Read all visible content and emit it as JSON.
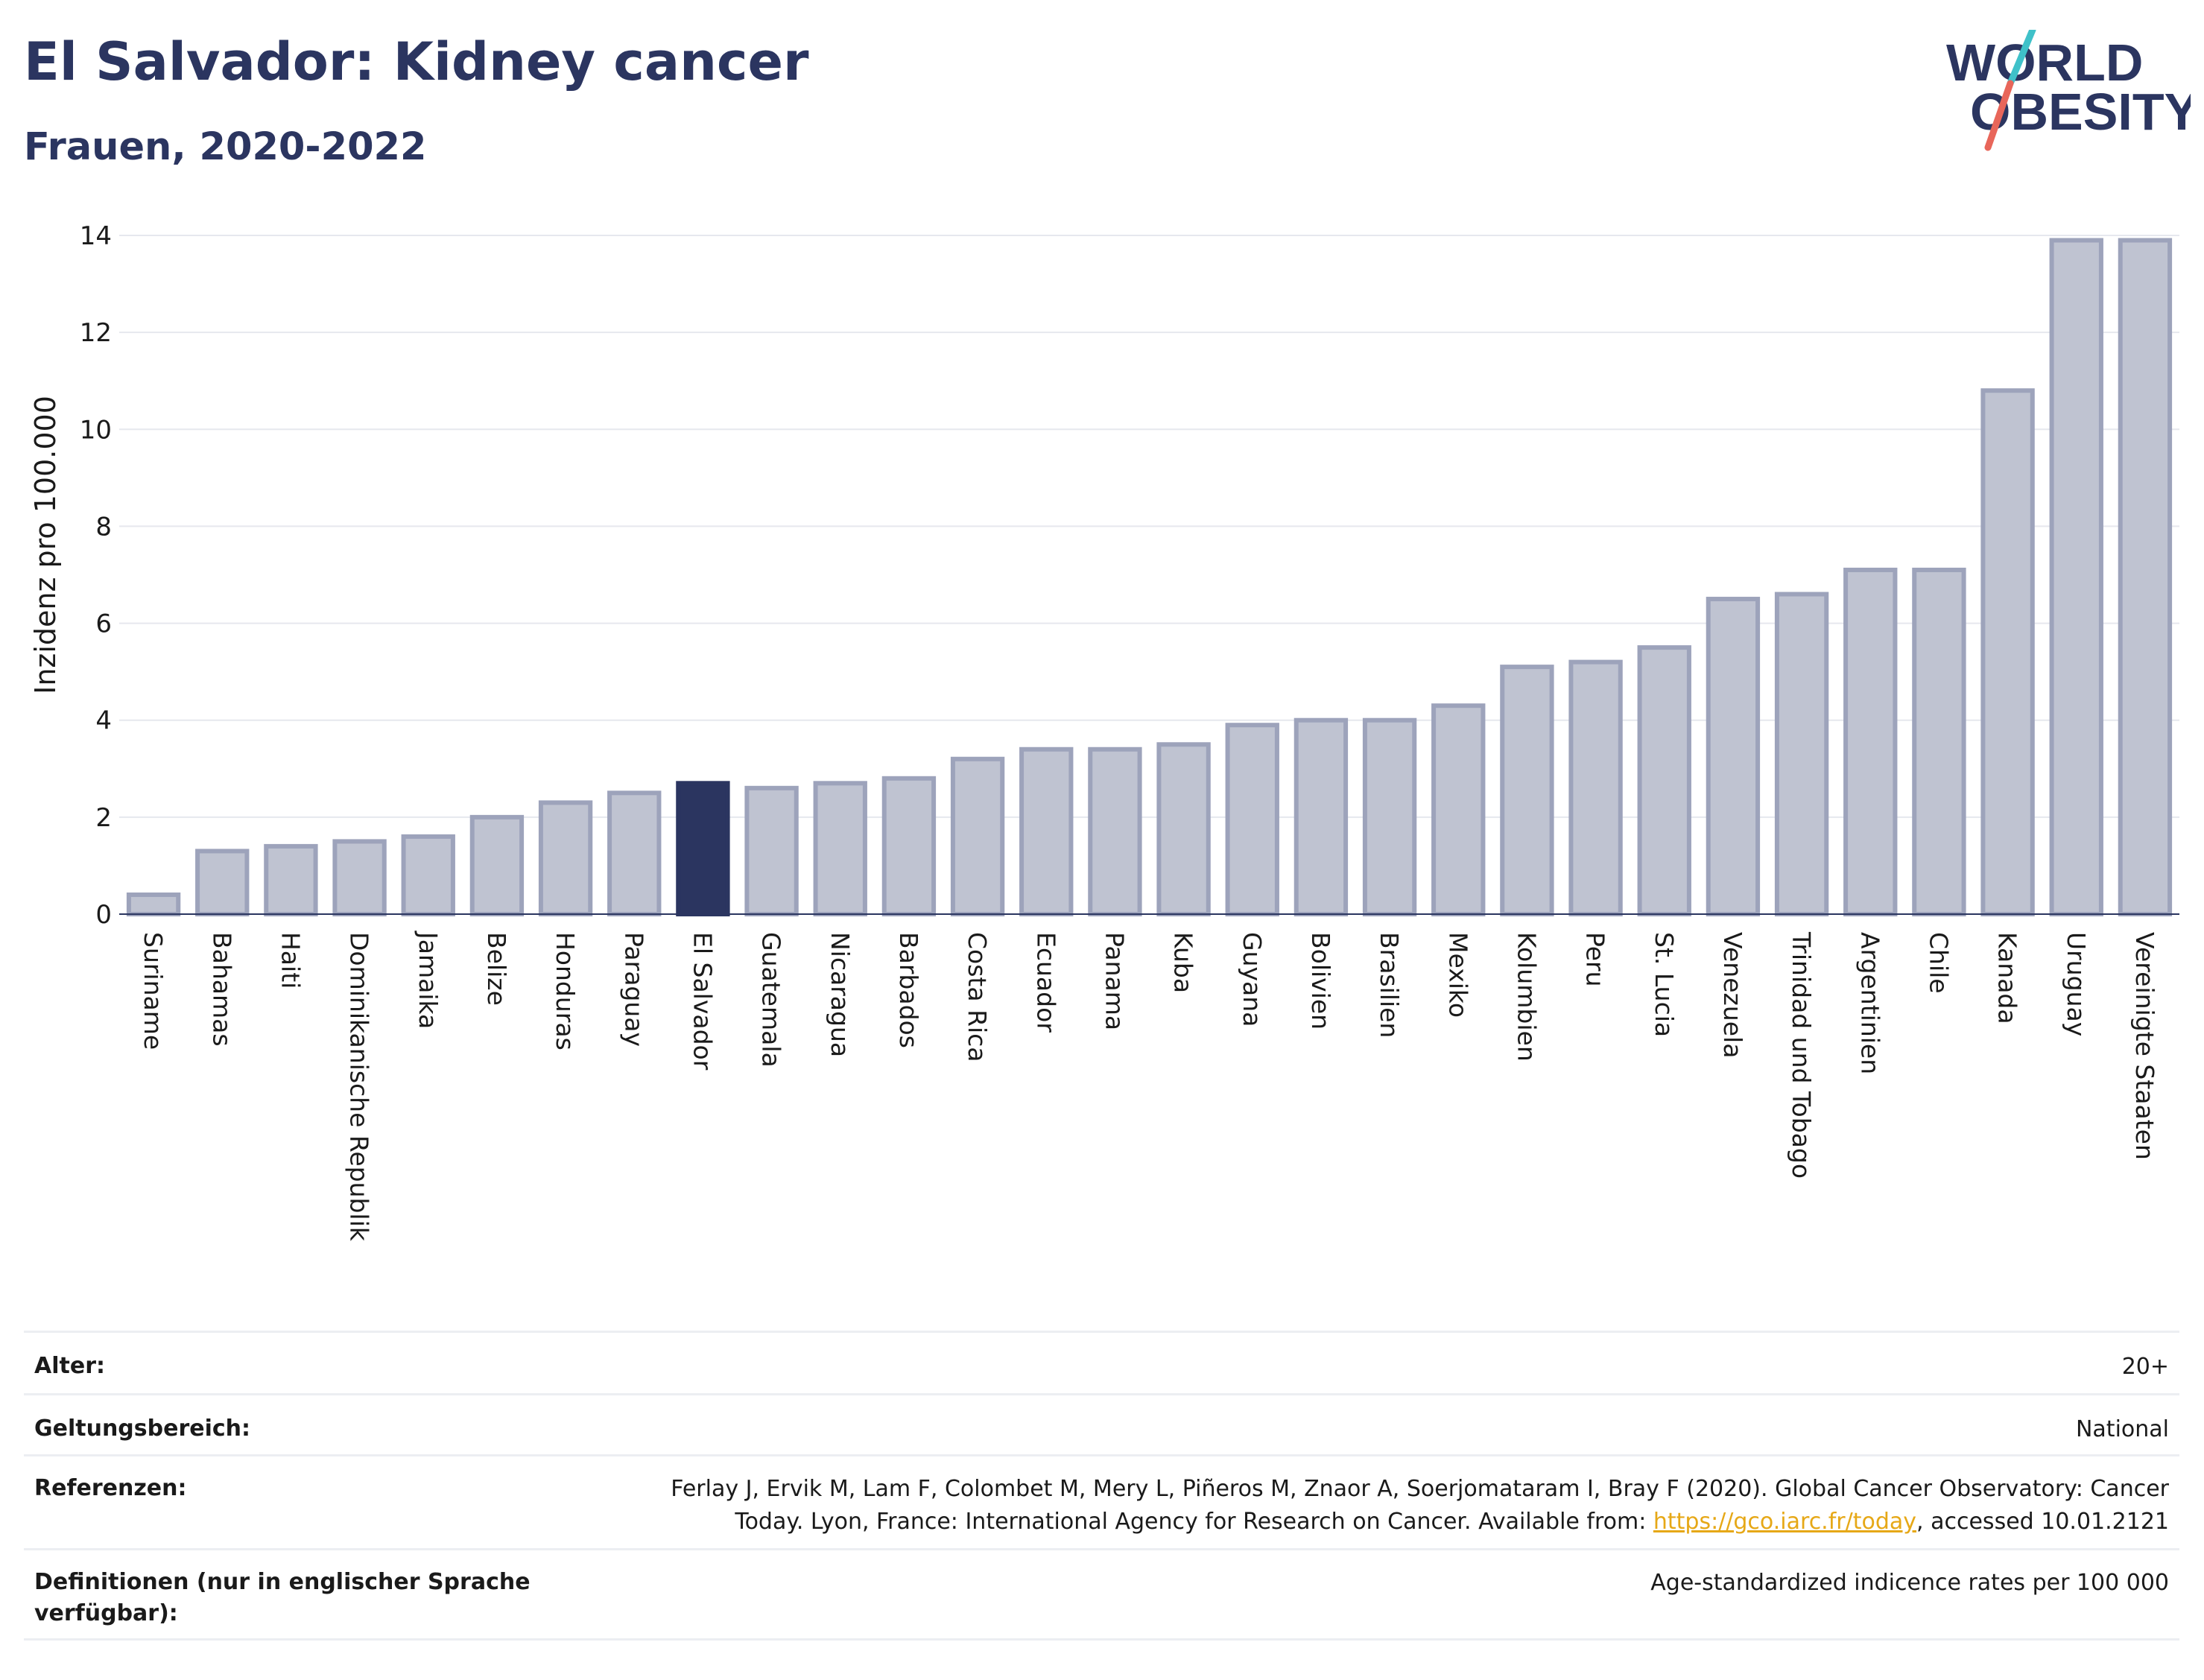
{
  "header": {
    "title": "El Salvador: Kidney cancer",
    "subtitle": "Frauen, 2020-2022"
  },
  "logo": {
    "line1": "WORLD",
    "line2": "OBESITY",
    "colors": {
      "text": "#2b3560",
      "slash_top": "#3fc1c9",
      "slash_bottom": "#e8665a"
    }
  },
  "chart_data": {
    "type": "bar",
    "ylabel": "Inzidenz pro 100.000",
    "ylim": [
      0,
      14
    ],
    "yticks": [
      0,
      2,
      4,
      6,
      8,
      10,
      12,
      14
    ],
    "grid": true,
    "highlight": "El Salvador",
    "colors": {
      "bar": "#bfc3d1",
      "bar_edge": "#9da3bb",
      "highlight": "#2b3560"
    },
    "categories": [
      "Suriname",
      "Bahamas",
      "Haiti",
      "Dominikanische Republik",
      "Jamaika",
      "Belize",
      "Honduras",
      "Paraguay",
      "El Salvador",
      "Guatemala",
      "Nicaragua",
      "Barbados",
      "Costa Rica",
      "Ecuador",
      "Panama",
      "Kuba",
      "Guyana",
      "Bolivien",
      "Brasilien",
      "Mexiko",
      "Kolumbien",
      "Peru",
      "St. Lucia",
      "Venezuela",
      "Trinidad und Tobago",
      "Argentinien",
      "Chile",
      "Kanada",
      "Uruguay",
      "Vereinigte Staaten"
    ],
    "values": [
      0.4,
      1.3,
      1.4,
      1.5,
      1.6,
      2.0,
      2.3,
      2.5,
      2.7,
      2.6,
      2.7,
      2.8,
      3.2,
      3.4,
      3.4,
      3.5,
      3.9,
      4.0,
      4.0,
      4.3,
      5.1,
      5.2,
      5.5,
      6.5,
      6.6,
      7.1,
      7.1,
      10.8,
      13.9,
      13.9
    ]
  },
  "meta": {
    "age_label": "Alter:",
    "age_value": "20+",
    "scope_label": "Geltungsbereich:",
    "scope_value": "National",
    "refs_label": "Referenzen:",
    "refs_text_1": "Ferlay J, Ervik M, Lam F, Colombet M, Mery L, Piñeros M, Znaor A, Soerjomataram I, Bray F (2020). Global Cancer Observatory: Cancer",
    "refs_text_2": "Today. Lyon, France: International Agency for Research on Cancer. Available from: ",
    "refs_link": "https://gco.iarc.fr/today",
    "refs_text_3": ", accessed 10.01.2121",
    "defs_label": "Definitionen (nur in englischer Sprache verfügbar):",
    "defs_value": "Age-standardized indicence rates per 100 000"
  }
}
